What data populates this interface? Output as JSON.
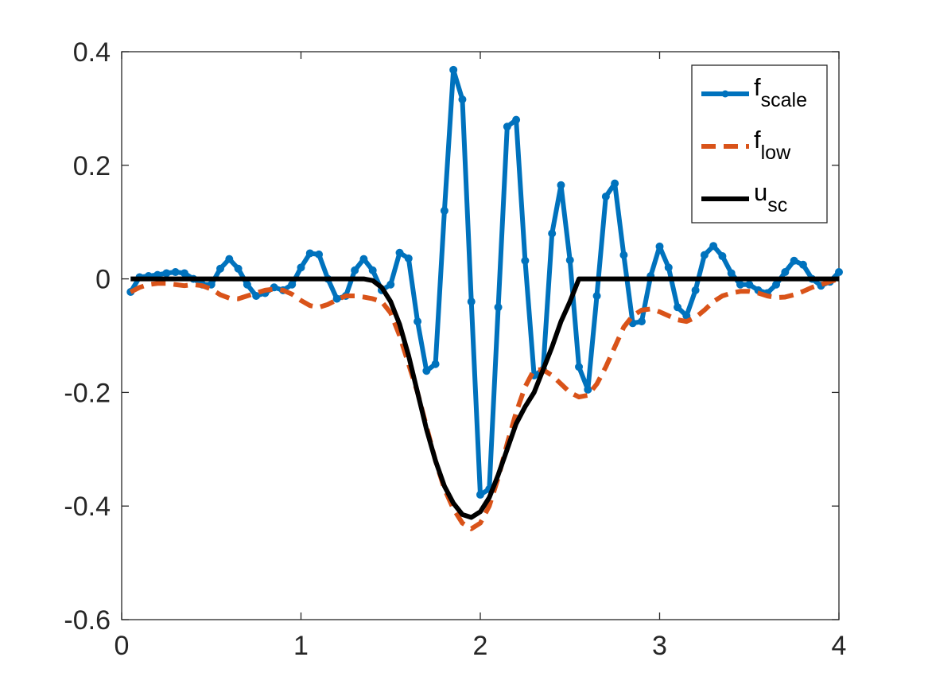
{
  "chart_data": {
    "type": "line",
    "x": [
      0.05,
      0.1,
      0.15,
      0.2,
      0.25,
      0.3,
      0.35,
      0.4,
      0.45,
      0.5,
      0.55,
      0.6,
      0.65,
      0.7,
      0.75,
      0.8,
      0.85,
      0.9,
      0.95,
      1.0,
      1.05,
      1.1,
      1.15,
      1.2,
      1.25,
      1.3,
      1.35,
      1.4,
      1.45,
      1.5,
      1.55,
      1.6,
      1.65,
      1.7,
      1.75,
      1.8,
      1.85,
      1.9,
      1.95,
      2.0,
      2.05,
      2.1,
      2.15,
      2.2,
      2.25,
      2.3,
      2.35,
      2.4,
      2.45,
      2.5,
      2.55,
      2.6,
      2.65,
      2.7,
      2.75,
      2.8,
      2.85,
      2.9,
      2.95,
      3.0,
      3.05,
      3.1,
      3.15,
      3.2,
      3.25,
      3.3,
      3.35,
      3.4,
      3.45,
      3.5,
      3.55,
      3.6,
      3.65,
      3.7,
      3.75,
      3.8,
      3.85,
      3.9,
      3.95,
      4.0
    ],
    "series": [
      {
        "name": "f",
        "name_sub": "scale",
        "color": "#0072bd",
        "style": "solid",
        "markers": true,
        "values": [
          -0.023,
          0.003,
          0.005,
          0.007,
          0.01,
          0.012,
          0.01,
          0.0,
          -0.01,
          -0.01,
          0.018,
          0.035,
          0.018,
          -0.01,
          -0.03,
          -0.025,
          -0.015,
          -0.02,
          -0.01,
          0.02,
          0.045,
          0.043,
          0.0,
          -0.035,
          -0.03,
          0.015,
          0.035,
          0.015,
          -0.02,
          -0.01,
          0.046,
          0.036,
          -0.075,
          -0.162,
          -0.15,
          0.12,
          0.368,
          0.316,
          -0.04,
          -0.38,
          -0.37,
          -0.05,
          0.268,
          0.28,
          0.032,
          -0.17,
          -0.16,
          0.08,
          0.165,
          0.033,
          -0.155,
          -0.195,
          -0.03,
          0.145,
          0.168,
          0.042,
          -0.078,
          -0.075,
          0.005,
          0.057,
          0.02,
          -0.05,
          -0.065,
          -0.02,
          0.042,
          0.058,
          0.04,
          0.01,
          -0.01,
          -0.01,
          -0.02,
          -0.025,
          -0.01,
          0.012,
          0.032,
          0.025,
          0.0,
          -0.012,
          -0.005,
          0.012
        ]
      },
      {
        "name": "f",
        "name_sub": "low",
        "color": "#d95319",
        "style": "dashed",
        "markers": false,
        "values": [
          -0.023,
          -0.015,
          -0.01,
          -0.008,
          -0.008,
          -0.01,
          -0.012,
          -0.01,
          -0.012,
          -0.018,
          -0.028,
          -0.034,
          -0.035,
          -0.03,
          -0.025,
          -0.02,
          -0.018,
          -0.02,
          -0.027,
          -0.038,
          -0.047,
          -0.05,
          -0.045,
          -0.037,
          -0.03,
          -0.03,
          -0.032,
          -0.035,
          -0.04,
          -0.06,
          -0.1,
          -0.15,
          -0.2,
          -0.26,
          -0.32,
          -0.37,
          -0.405,
          -0.43,
          -0.44,
          -0.43,
          -0.4,
          -0.35,
          -0.29,
          -0.235,
          -0.19,
          -0.16,
          -0.16,
          -0.17,
          -0.185,
          -0.2,
          -0.208,
          -0.205,
          -0.185,
          -0.155,
          -0.12,
          -0.085,
          -0.065,
          -0.055,
          -0.053,
          -0.058,
          -0.065,
          -0.072,
          -0.075,
          -0.068,
          -0.055,
          -0.04,
          -0.03,
          -0.025,
          -0.022,
          -0.022,
          -0.025,
          -0.03,
          -0.033,
          -0.032,
          -0.028,
          -0.022,
          -0.015,
          -0.01,
          -0.005,
          0.0
        ]
      },
      {
        "name": "u",
        "name_sub": "sc",
        "color": "#000000",
        "style": "solid",
        "markers": false,
        "values": [
          0,
          0,
          0,
          0,
          0,
          0,
          0,
          0,
          0,
          0,
          0,
          0,
          0,
          0,
          0,
          0,
          0,
          0,
          0,
          0,
          0,
          0,
          0,
          0,
          0,
          0,
          0,
          -0.003,
          -0.015,
          -0.04,
          -0.08,
          -0.135,
          -0.2,
          -0.265,
          -0.32,
          -0.365,
          -0.395,
          -0.415,
          -0.42,
          -0.41,
          -0.385,
          -0.345,
          -0.3,
          -0.255,
          -0.225,
          -0.2,
          -0.16,
          -0.12,
          -0.075,
          -0.04,
          0,
          0,
          0,
          0,
          0,
          0,
          0,
          0,
          0,
          0,
          0,
          0,
          0,
          0,
          0,
          0,
          0,
          0,
          0,
          0,
          0,
          0,
          0,
          0,
          0,
          0,
          0,
          0,
          0,
          0
        ]
      }
    ],
    "xlim": [
      0,
      4
    ],
    "xticks": [
      0,
      1,
      2,
      3,
      4
    ],
    "ylim": [
      -0.6,
      0.4
    ],
    "yticks": [
      -0.6,
      -0.4,
      -0.2,
      0,
      0.2,
      0.4
    ],
    "legend": "upper right",
    "grid": false
  }
}
